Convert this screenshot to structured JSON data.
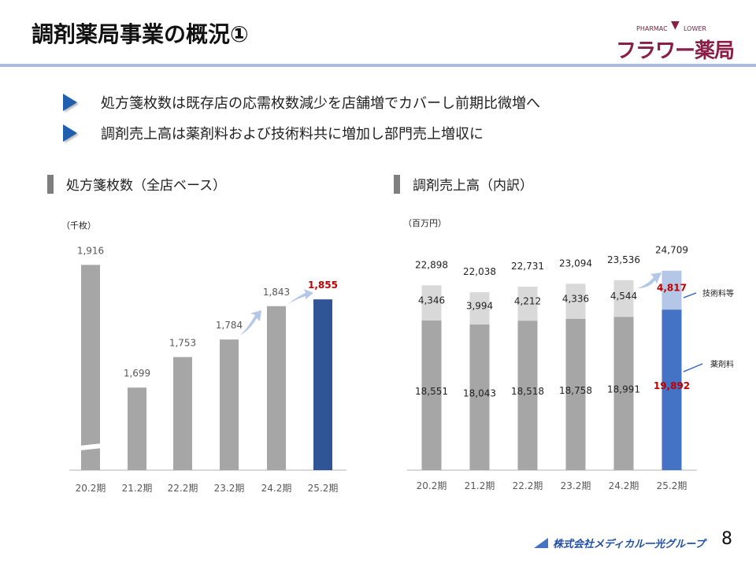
{
  "title": "調剤薬局事業の概況①",
  "logo": {
    "small_left": "PHARMAC",
    "small_right": "LOWER",
    "name": "フラワー薬局"
  },
  "bullets": [
    "処方箋枚数は既存店の応需枚数減少を店舗増でカバーし前期比微増へ",
    "調剤売上高は薬剤料および技術料共に増加し部門売上増収に"
  ],
  "colors": {
    "gray_bar": "#a6a6a6",
    "light_gray": "#d9d9d9",
    "dark_blue": "#2f5597",
    "blue": "#4472c4",
    "light_blue": "#b4c7e7",
    "highlight_red": "#c00000",
    "brand": "#8a1f45"
  },
  "footer": {
    "company": "株式会社メディカル一光グループ",
    "page": "8"
  },
  "chart_data": [
    {
      "type": "bar",
      "section_title": "処方箋枚数（全店ベース）",
      "unit": "（千枚）",
      "categories": [
        "20.2期",
        "21.2期",
        "22.2期",
        "23.2期",
        "24.2期",
        "25.2期"
      ],
      "values": [
        1916,
        1699,
        1753,
        1784,
        1843,
        1855
      ],
      "labels": [
        "1,916",
        "1,699",
        "1,753",
        "1,784",
        "1,843",
        "1,855"
      ],
      "axis_break": true,
      "highlight_last": true
    },
    {
      "type": "bar",
      "stacked": true,
      "section_title": "調剤売上高（内訳）",
      "unit": "（百万円）",
      "categories": [
        "20.2期",
        "21.2期",
        "22.2期",
        "23.2期",
        "24.2期",
        "25.2期"
      ],
      "series": [
        {
          "name": "薬剤料",
          "values": [
            18551,
            18043,
            18518,
            18758,
            18991,
            19892
          ],
          "labels": [
            "18,551",
            "18,043",
            "18,518",
            "18,758",
            "18,991",
            "19,892"
          ]
        },
        {
          "name": "技術料等",
          "values": [
            4346,
            3994,
            4212,
            4336,
            4544,
            4817
          ],
          "labels": [
            "4,346",
            "3,994",
            "4,212",
            "4,336",
            "4,544",
            "4,817"
          ]
        }
      ],
      "totals": [
        "22,898",
        "22,038",
        "22,731",
        "23,094",
        "23,536",
        "24,709"
      ],
      "highlight_last": true
    }
  ]
}
